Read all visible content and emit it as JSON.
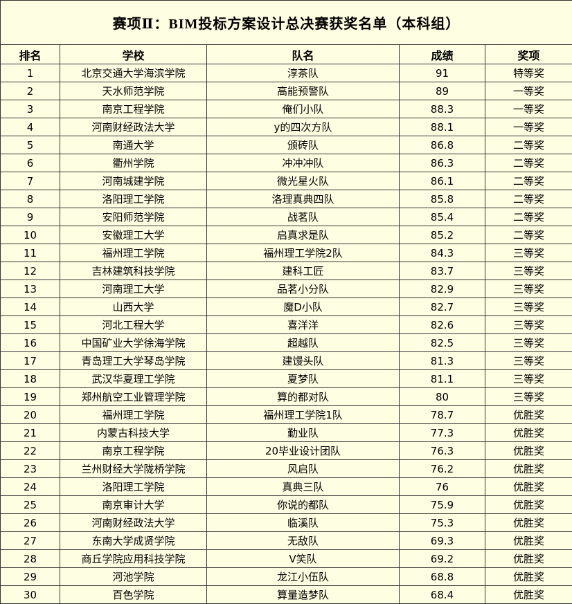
{
  "title": "赛项Ⅱ：BIM投标方案设计总决赛获奖名单（本科组）",
  "table": {
    "header": [
      "排名",
      "学校",
      "队名",
      "成绩",
      "奖项"
    ],
    "rows": [
      [
        1,
        "北京交通大学海滨学院",
        "淳茶队",
        91,
        "特等奖"
      ],
      [
        2,
        "天水师范学院",
        "高能预警队",
        89,
        "一等奖"
      ],
      [
        3,
        "南京工程学院",
        "俺们小队",
        88.3,
        "一等奖"
      ],
      [
        4,
        "河南财经政法大学",
        "y的四次方队",
        88.1,
        "一等奖"
      ],
      [
        5,
        "南通大学",
        "颁砖队",
        86.8,
        "二等奖"
      ],
      [
        6,
        "衢州学院",
        "冲冲冲队",
        86.3,
        "二等奖"
      ],
      [
        7,
        "河南城建学院",
        "微光星火队",
        86.1,
        "二等奖"
      ],
      [
        8,
        "洛阳理工学院",
        "洛理真典四队",
        85.8,
        "二等奖"
      ],
      [
        9,
        "安阳师范学院",
        "战茗队",
        85.4,
        "二等奖"
      ],
      [
        10,
        "安徽理工大学",
        "启真求是队",
        85.2,
        "二等奖"
      ],
      [
        11,
        "福州理工学院",
        "福州理工学院2队",
        84.3,
        "三等奖"
      ],
      [
        12,
        "吉林建筑科技学院",
        "建科工匠",
        83.7,
        "三等奖"
      ],
      [
        13,
        "河南理工大学",
        "品茗小分队",
        82.9,
        "三等奖"
      ],
      [
        14,
        "山西大学",
        "魔D小队",
        82.7,
        "三等奖"
      ],
      [
        15,
        "河北工程大学",
        "喜洋洋",
        82.6,
        "三等奖"
      ],
      [
        16,
        "中国矿业大学徐海学院",
        "超越队",
        82.5,
        "三等奖"
      ],
      [
        17,
        "青岛理工大学琴岛学院",
        "建馒头队",
        81.3,
        "三等奖"
      ],
      [
        18,
        "武汉华夏理工学院",
        "夏梦队",
        81.1,
        "三等奖"
      ],
      [
        19,
        "郑州航空工业管理学院",
        "算的都对队",
        80,
        "三等奖"
      ],
      [
        20,
        "福州理工学院",
        "福州理工学院1队",
        78.7,
        "优胜奖"
      ],
      [
        21,
        "内蒙古科技大学",
        "勤业队",
        77.3,
        "优胜奖"
      ],
      [
        22,
        "南京工程学院",
        "20毕业设计团队",
        76.3,
        "优胜奖"
      ],
      [
        23,
        "兰州财经大学陇桥学院",
        "风启队",
        76.2,
        "优胜奖"
      ],
      [
        24,
        "洛阳理工学院",
        "真典三队",
        76,
        "优胜奖"
      ],
      [
        25,
        "南京审计大学",
        "你说的都队",
        75.9,
        "优胜奖"
      ],
      [
        26,
        "河南财经政法大学",
        "临溪队",
        75.3,
        "优胜奖"
      ],
      [
        27,
        "东南大学成贤学院",
        "无敌队",
        69.3,
        "优胜奖"
      ],
      [
        28,
        "商丘学院应用科技学院",
        "V笑队",
        69.2,
        "优胜奖"
      ],
      [
        29,
        "河池学院",
        "龙江小伍队",
        68.8,
        "优胜奖"
      ],
      [
        30,
        "百色学院",
        "算量造梦队",
        68.4,
        "优胜奖"
      ]
    ]
  }
}
